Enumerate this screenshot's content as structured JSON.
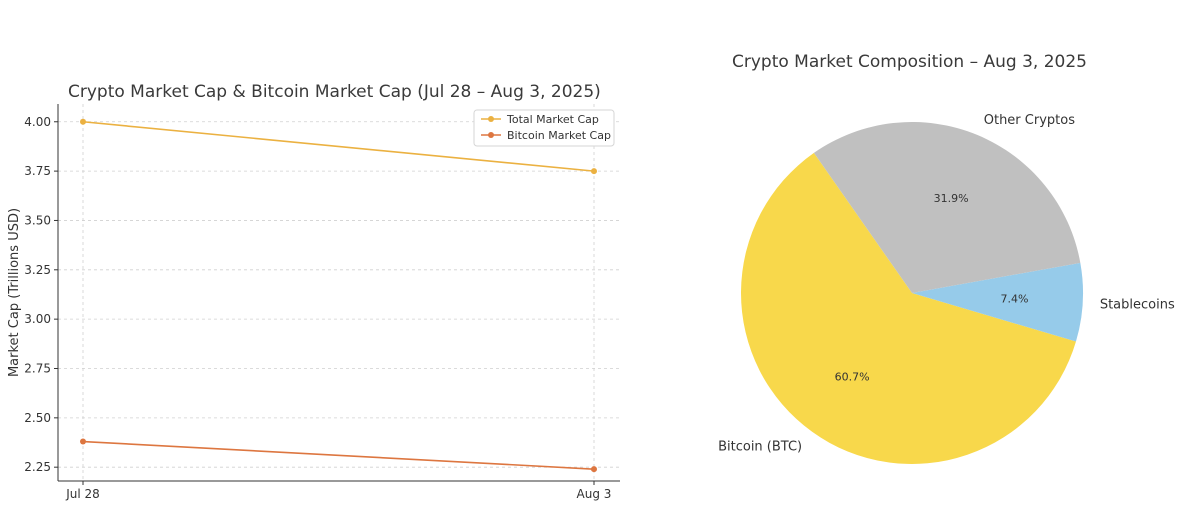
{
  "chart_data": [
    {
      "type": "line",
      "title": "Crypto Market Cap & Bitcoin Market Cap (Jul 28 – Aug 3, 2025)",
      "xlabel": "",
      "ylabel": "Market Cap (Trillions USD)",
      "categories": [
        "Jul 28",
        "Aug 3"
      ],
      "ylim": [
        2.18,
        4.09
      ],
      "yticks": [
        "2.25",
        "2.50",
        "2.75",
        "3.00",
        "3.25",
        "3.50",
        "3.75",
        "4.00"
      ],
      "grid": true,
      "legend_position": "top-right",
      "series": [
        {
          "name": "Total Market Cap",
          "values": [
            4.0,
            3.75
          ],
          "color": "#ebb141"
        },
        {
          "name": "Bitcoin Market Cap",
          "values": [
            2.38,
            2.24
          ],
          "color": "#dd7640"
        }
      ]
    },
    {
      "type": "pie",
      "title": "Crypto Market Composition – Aug 3, 2025",
      "slices": [
        {
          "label": "Bitcoin (BTC)",
          "value": 60.7,
          "pct_label": "60.7%",
          "color": "#f8d84b"
        },
        {
          "label": "Stablecoins",
          "value": 7.4,
          "pct_label": "7.4%",
          "color": "#96cbea"
        },
        {
          "label": "Other Cryptos",
          "value": 31.9,
          "pct_label": "31.9%",
          "color": "#c0c0c0"
        }
      ]
    }
  ]
}
